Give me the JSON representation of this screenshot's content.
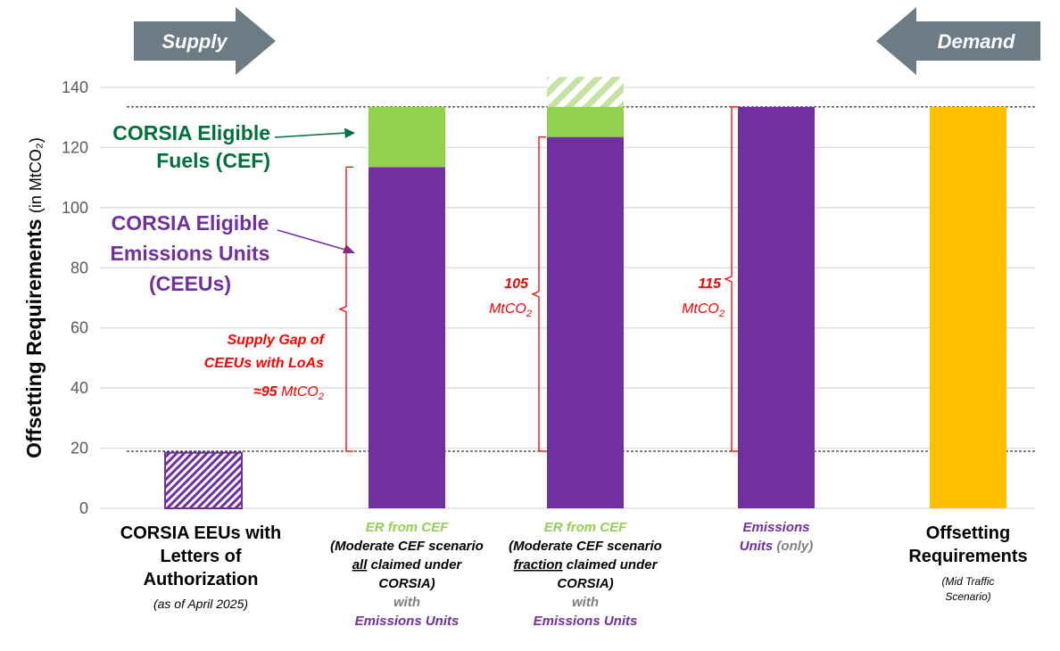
{
  "chart_data": {
    "type": "bar",
    "ylabel": "Offsetting Requirements",
    "ylabel_unit": "(in MtCO₂)",
    "ylim": [
      0,
      140
    ],
    "yticks": [
      0,
      20,
      40,
      60,
      80,
      100,
      120,
      140
    ],
    "grid": true,
    "colors": {
      "eeu_hatch": "#7030a0",
      "ceeu": "#7030a0",
      "cef": "#92d050",
      "offsetting": "#ffc000",
      "annotation": "#ff0000",
      "cef_label": "#00703c",
      "arrow": "#6d7b84"
    },
    "reference_lines": [
      133.5,
      19
    ],
    "bars": [
      {
        "id": "eeus-loa",
        "segments": [
          {
            "series": "CORSIA EEUs with Letters of Authorization",
            "value": 18.5,
            "style": "hatched-purple"
          }
        ]
      },
      {
        "id": "all-claimed",
        "segments": [
          {
            "series": "CEEUs",
            "value": 113.5,
            "style": "purple"
          },
          {
            "series": "CEF",
            "value": 20,
            "style": "green"
          }
        ]
      },
      {
        "id": "fraction-claimed",
        "segments": [
          {
            "series": "CEEUs",
            "value": 123.5,
            "style": "purple"
          },
          {
            "series": "CEF",
            "value": 10,
            "style": "green"
          },
          {
            "series": "CEF (not claimed)",
            "value": 10,
            "style": "hatched-green"
          }
        ]
      },
      {
        "id": "units-only",
        "segments": [
          {
            "series": "CEEUs",
            "value": 133.5,
            "style": "purple"
          }
        ]
      },
      {
        "id": "offsetting",
        "segments": [
          {
            "series": "Offsetting Requirements",
            "value": 133.5,
            "style": "yellow"
          }
        ]
      }
    ],
    "category_labels": [
      {
        "lines": [
          {
            "parts": [
              {
                "text": "CORSIA EEUs with",
                "style": "bold-black"
              }
            ]
          },
          {
            "parts": [
              {
                "text": "Letters of",
                "style": "bold-black"
              }
            ]
          },
          {
            "parts": [
              {
                "text": "Authorization",
                "style": "bold-black"
              }
            ]
          },
          {
            "parts": [
              {
                "text": "(as of April 2025)",
                "style": "italic-black"
              }
            ]
          }
        ]
      },
      {
        "lines": [
          {
            "parts": [
              {
                "text": "ER from CEF",
                "style": "green"
              }
            ]
          },
          {
            "parts": [
              {
                "text": "(Moderate CEF scenario",
                "style": "black"
              }
            ]
          },
          {
            "parts": [
              {
                "text": "all",
                "style": "black-underline"
              },
              {
                "text": " claimed under",
                "style": "black"
              }
            ]
          },
          {
            "parts": [
              {
                "text": "CORSIA)",
                "style": "black"
              }
            ]
          },
          {
            "parts": [
              {
                "text": "with",
                "style": "grey"
              }
            ]
          },
          {
            "parts": [
              {
                "text": "Emissions Units",
                "style": "purple"
              }
            ]
          }
        ]
      },
      {
        "lines": [
          {
            "parts": [
              {
                "text": "ER from CEF",
                "style": "green"
              }
            ]
          },
          {
            "parts": [
              {
                "text": "(Moderate CEF scenario",
                "style": "black"
              }
            ]
          },
          {
            "parts": [
              {
                "text": "fraction",
                "style": "black-underline"
              },
              {
                "text": " claimed under",
                "style": "black"
              }
            ]
          },
          {
            "parts": [
              {
                "text": "CORSIA)",
                "style": "black"
              }
            ]
          },
          {
            "parts": [
              {
                "text": "with",
                "style": "grey"
              }
            ]
          },
          {
            "parts": [
              {
                "text": "Emissions Units",
                "style": "purple"
              }
            ]
          }
        ]
      },
      {
        "lines": [
          {
            "parts": [
              {
                "text": "Emissions",
                "style": "purple"
              }
            ]
          },
          {
            "parts": [
              {
                "text": "Units",
                "style": "purple"
              },
              {
                "text": " (only)",
                "style": "grey"
              }
            ]
          }
        ]
      },
      {
        "lines": [
          {
            "parts": [
              {
                "text": "Offsetting",
                "style": "bold-black"
              }
            ]
          },
          {
            "parts": [
              {
                "text": "Requirements",
                "style": "bold-black"
              }
            ]
          },
          {
            "parts": [
              {
                "text": "(Mid Traffic",
                "style": "small-italic"
              }
            ]
          },
          {
            "parts": [
              {
                "text": "Scenario)",
                "style": "small-italic"
              }
            ]
          }
        ]
      }
    ],
    "arrows": {
      "supply": "Supply",
      "demand": "Demand"
    },
    "annotations": {
      "cef_label": [
        "CORSIA Eligible",
        "Fuels (CEF)"
      ],
      "ceeu_label": [
        "CORSIA Eligible",
        "Emissions Units",
        "(CEEUs)"
      ],
      "gap1": {
        "lines": [
          "Supply Gap of",
          "CEEUs with LoAs"
        ],
        "approx_prefix": "≈95",
        "unit": "MtCO",
        "sub": "2",
        "range": [
          19,
          113.5
        ]
      },
      "gap2": {
        "value": "105",
        "unit": "MtCO",
        "sub": "2",
        "range": [
          19,
          123.5
        ]
      },
      "gap3": {
        "value": "115",
        "unit": "MtCO",
        "sub": "2",
        "range": [
          19,
          133.5
        ]
      }
    }
  }
}
